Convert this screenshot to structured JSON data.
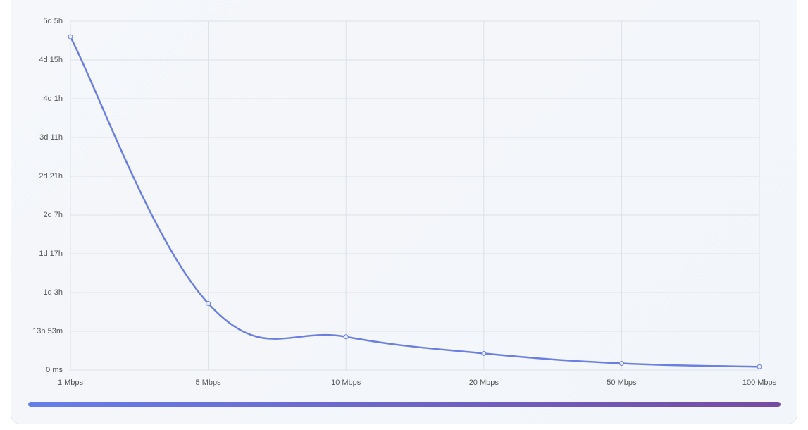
{
  "chart_data": {
    "type": "line",
    "categories": [
      "1 Mbps",
      "5 Mbps",
      "10 Mbps",
      "20 Mbps",
      "50 Mbps",
      "100 Mbps"
    ],
    "series": [
      {
        "color": "#6b7fe3",
        "values": [
          119.4,
          23.88,
          11.94,
          5.97,
          2.39,
          1.19
        ]
      }
    ],
    "ylim": [
      0,
      125
    ],
    "yticks": [
      {
        "value": 0,
        "label": "0 ms"
      },
      {
        "value": 13.8889,
        "label": "13h 53m"
      },
      {
        "value": 27.7778,
        "label": "1d 3h"
      },
      {
        "value": 41.6667,
        "label": "1d 17h"
      },
      {
        "value": 55.5556,
        "label": "2d 7h"
      },
      {
        "value": 69.4444,
        "label": "2d 21h"
      },
      {
        "value": 83.3333,
        "label": "3d 11h"
      },
      {
        "value": 97.2222,
        "label": "4d 1h"
      },
      {
        "value": 111.1111,
        "label": "4d 15h"
      },
      {
        "value": 125,
        "label": "5d 5h"
      }
    ],
    "grid": true
  }
}
